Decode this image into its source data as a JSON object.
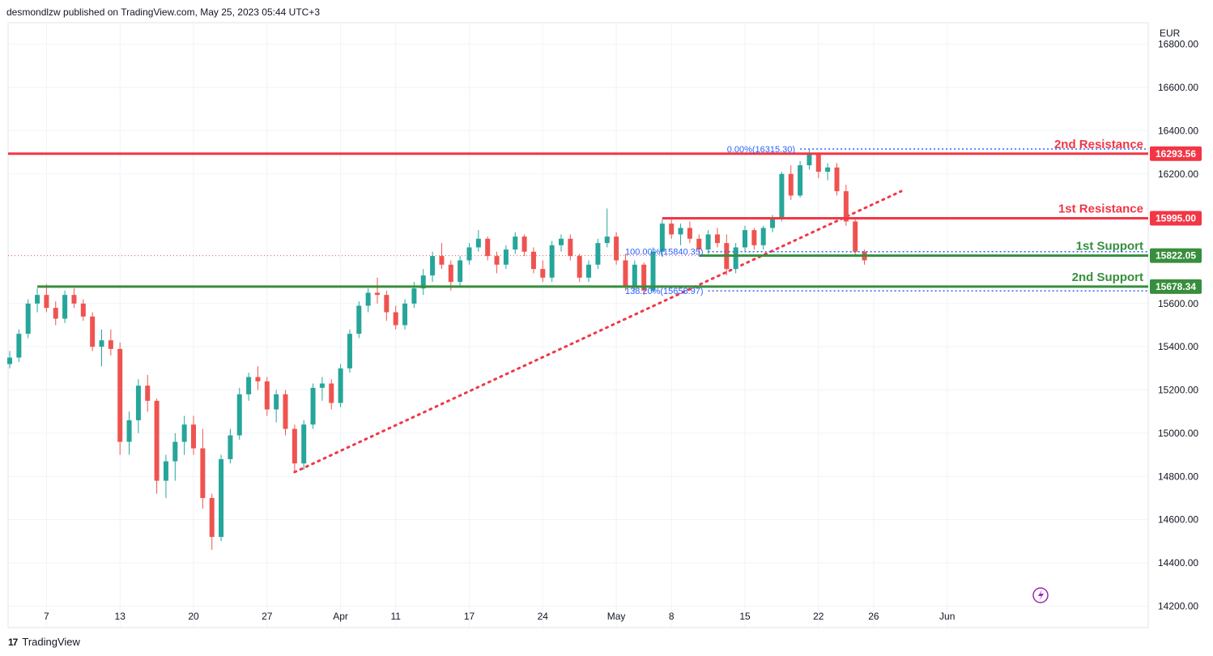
{
  "header": {
    "text": "desmondlzw published on TradingView.com, May 25, 2023 05:44 UTC+3"
  },
  "footer": {
    "brand": "TradingView"
  },
  "colors": {
    "up": "#26a69a",
    "down": "#ef5350",
    "resistance": "#f23645",
    "support": "#388e3c",
    "fib": "#2962ff",
    "grid": "#f0f3fa",
    "flash": "#9c27b0"
  },
  "chart_data": {
    "type": "candlestick",
    "currency": "EUR",
    "ylim": [
      14100,
      16900
    ],
    "y_ticks": [
      14200,
      14400,
      14600,
      14800,
      15000,
      15200,
      15400,
      15600,
      16200,
      16400,
      16600,
      16800
    ],
    "y_tick_labels": [
      "14200.00",
      "14400.00",
      "14600.00",
      "14800.00",
      "15000.00",
      "15200.00",
      "15400.00",
      "15600.00",
      "16200.00",
      "16400.00",
      "16600.00",
      "16800.00"
    ],
    "x_ticks": [
      {
        "label": "7",
        "i": 4
      },
      {
        "label": "13",
        "i": 12
      },
      {
        "label": "20",
        "i": 20
      },
      {
        "label": "27",
        "i": 28
      },
      {
        "label": "Apr",
        "i": 36
      },
      {
        "label": "11",
        "i": 42
      },
      {
        "label": "17",
        "i": 50
      },
      {
        "label": "24",
        "i": 58
      },
      {
        "label": "May",
        "i": 66
      },
      {
        "label": "8",
        "i": 72
      },
      {
        "label": "15",
        "i": 80
      },
      {
        "label": "22",
        "i": 88
      },
      {
        "label": "26",
        "i": 94
      },
      {
        "label": "Jun",
        "i": 102
      }
    ],
    "candles": [
      [
        15320,
        15380,
        15300,
        15350
      ],
      [
        15350,
        15480,
        15330,
        15460
      ],
      [
        15460,
        15620,
        15440,
        15600
      ],
      [
        15600,
        15670,
        15560,
        15640
      ],
      [
        15640,
        15690,
        15560,
        15580
      ],
      [
        15580,
        15610,
        15500,
        15530
      ],
      [
        15530,
        15660,
        15510,
        15640
      ],
      [
        15640,
        15670,
        15580,
        15600
      ],
      [
        15600,
        15620,
        15520,
        15540
      ],
      [
        15540,
        15560,
        15380,
        15400
      ],
      [
        15400,
        15480,
        15310,
        15430
      ],
      [
        15430,
        15480,
        15360,
        15390
      ],
      [
        15390,
        15420,
        14900,
        14960
      ],
      [
        14960,
        15100,
        14900,
        15060
      ],
      [
        15060,
        15250,
        15000,
        15220
      ],
      [
        15220,
        15270,
        15100,
        15150
      ],
      [
        15150,
        15160,
        14720,
        14780
      ],
      [
        14780,
        14900,
        14700,
        14870
      ],
      [
        14870,
        15000,
        14780,
        14960
      ],
      [
        14960,
        15080,
        14900,
        15040
      ],
      [
        15040,
        15080,
        14900,
        14930
      ],
      [
        14930,
        15020,
        14650,
        14700
      ],
      [
        14700,
        14720,
        14460,
        14520
      ],
      [
        14520,
        14900,
        14500,
        14880
      ],
      [
        14880,
        15020,
        14860,
        14990
      ],
      [
        14990,
        15210,
        14970,
        15180
      ],
      [
        15180,
        15280,
        15150,
        15260
      ],
      [
        15260,
        15310,
        15200,
        15240
      ],
      [
        15240,
        15260,
        15080,
        15110
      ],
      [
        15110,
        15200,
        15050,
        15180
      ],
      [
        15180,
        15200,
        14990,
        15020
      ],
      [
        15020,
        15040,
        14820,
        14860
      ],
      [
        14860,
        15060,
        14830,
        15040
      ],
      [
        15040,
        15230,
        15020,
        15210
      ],
      [
        15210,
        15260,
        15150,
        15230
      ],
      [
        15230,
        15250,
        15110,
        15140
      ],
      [
        15140,
        15320,
        15120,
        15300
      ],
      [
        15300,
        15480,
        15280,
        15460
      ],
      [
        15460,
        15610,
        15440,
        15590
      ],
      [
        15590,
        15670,
        15560,
        15650
      ],
      [
        15650,
        15720,
        15600,
        15640
      ],
      [
        15640,
        15660,
        15520,
        15560
      ],
      [
        15560,
        15590,
        15480,
        15500
      ],
      [
        15500,
        15620,
        15480,
        15600
      ],
      [
        15600,
        15700,
        15580,
        15670
      ],
      [
        15670,
        15760,
        15640,
        15730
      ],
      [
        15730,
        15840,
        15700,
        15820
      ],
      [
        15820,
        15880,
        15760,
        15780
      ],
      [
        15780,
        15800,
        15660,
        15700
      ],
      [
        15700,
        15820,
        15680,
        15800
      ],
      [
        15800,
        15880,
        15780,
        15860
      ],
      [
        15860,
        15940,
        15840,
        15900
      ],
      [
        15900,
        15910,
        15800,
        15820
      ],
      [
        15820,
        15840,
        15740,
        15780
      ],
      [
        15780,
        15870,
        15760,
        15850
      ],
      [
        15850,
        15930,
        15830,
        15910
      ],
      [
        15910,
        15920,
        15820,
        15840
      ],
      [
        15840,
        15860,
        15740,
        15760
      ],
      [
        15760,
        15800,
        15700,
        15720
      ],
      [
        15720,
        15890,
        15700,
        15870
      ],
      [
        15870,
        15920,
        15840,
        15900
      ],
      [
        15900,
        15920,
        15800,
        15820
      ],
      [
        15820,
        15830,
        15700,
        15720
      ],
      [
        15720,
        15800,
        15700,
        15780
      ],
      [
        15780,
        15900,
        15760,
        15880
      ],
      [
        15880,
        16040,
        15860,
        15910
      ],
      [
        15910,
        15930,
        15780,
        15800
      ],
      [
        15800,
        15830,
        15660,
        15680
      ],
      [
        15680,
        15800,
        15660,
        15780
      ],
      [
        15780,
        15790,
        15640,
        15660
      ],
      [
        15660,
        15860,
        15650,
        15840
      ],
      [
        15840,
        15990,
        15820,
        15970
      ],
      [
        15970,
        15990,
        15900,
        15920
      ],
      [
        15920,
        15970,
        15870,
        15950
      ],
      [
        15950,
        15980,
        15880,
        15900
      ],
      [
        15900,
        15920,
        15830,
        15850
      ],
      [
        15850,
        15940,
        15830,
        15920
      ],
      [
        15920,
        15950,
        15860,
        15880
      ],
      [
        15880,
        15920,
        15730,
        15760
      ],
      [
        15760,
        15880,
        15740,
        15860
      ],
      [
        15860,
        15960,
        15840,
        15940
      ],
      [
        15940,
        15950,
        15850,
        15870
      ],
      [
        15870,
        15960,
        15850,
        15950
      ],
      [
        15950,
        16010,
        15930,
        15990
      ],
      [
        15990,
        16210,
        15980,
        16200
      ],
      [
        16200,
        16240,
        16080,
        16100
      ],
      [
        16100,
        16260,
        16090,
        16240
      ],
      [
        16240,
        16315,
        16220,
        16290
      ],
      [
        16290,
        16300,
        16180,
        16210
      ],
      [
        16210,
        16250,
        16170,
        16230
      ],
      [
        16230,
        16250,
        16100,
        16120
      ],
      [
        16120,
        16150,
        15960,
        15980
      ],
      [
        15980,
        15990,
        15820,
        15840
      ],
      [
        15840,
        15850,
        15780,
        15800
      ]
    ],
    "levels": [
      {
        "name": "2nd Resistance",
        "value": 16293.56,
        "label": "16293.56",
        "color": "#f23645",
        "x_start_i": -1
      },
      {
        "name": "1st Resistance",
        "value": 15995.0,
        "label": "15995.00",
        "color": "#f23645",
        "x_start_i": 71
      },
      {
        "name": "1st Support",
        "value": 15822.05,
        "label": "15822.05",
        "color": "#388e3c",
        "x_start_i": 75
      },
      {
        "name": "2nd Support",
        "value": 15678.34,
        "label": "15678.34",
        "color": "#388e3c",
        "x_start_i": 3
      }
    ],
    "fib": [
      {
        "label": "0.00%(16315.30)",
        "value": 16315.3,
        "x_start_i": 86
      },
      {
        "label": "100.00%(15840.35)",
        "value": 15840.35,
        "x_start_i": 76
      },
      {
        "label": "138.20%(15658.97)",
        "value": 15658.97,
        "x_start_i": 76
      }
    ],
    "trendline": {
      "from": {
        "i": 31,
        "v": 14820
      },
      "to": {
        "i": 97,
        "v": 16120
      }
    },
    "current_price": 15822.05
  }
}
